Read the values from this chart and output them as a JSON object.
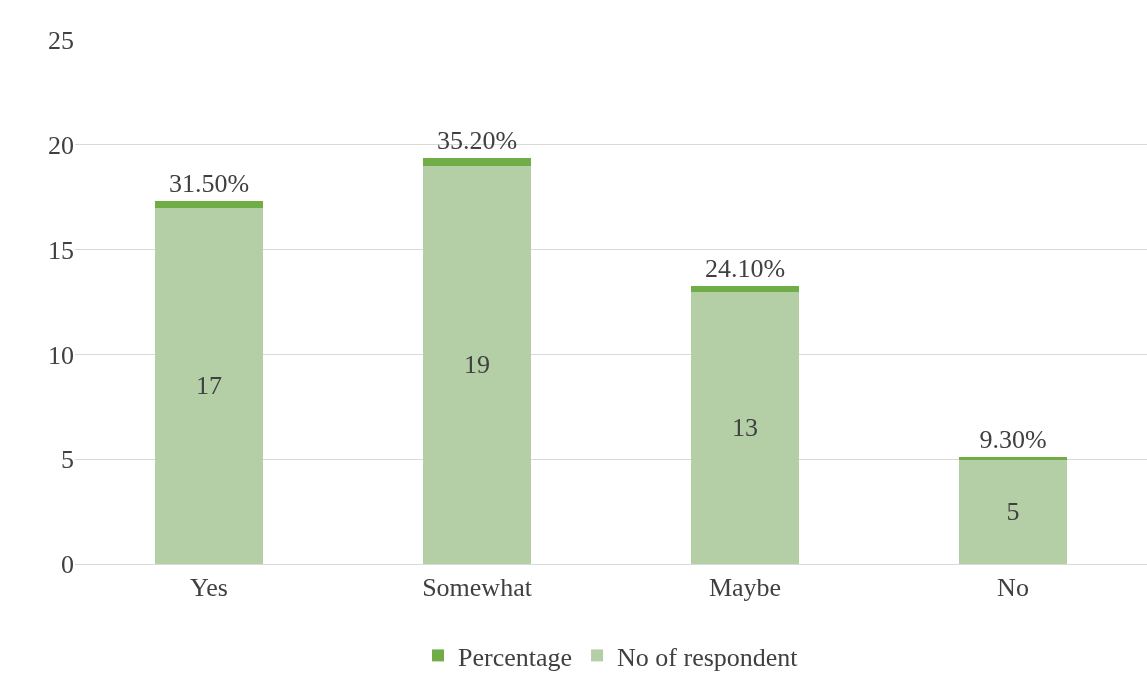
{
  "chart_data": {
    "type": "bar",
    "stacked": true,
    "categories": [
      "Yes",
      "Somewhat",
      "Maybe",
      "No"
    ],
    "series": [
      {
        "name": "No of respondent",
        "color": "#b4cfa5",
        "values": [
          17,
          19,
          13,
          5
        ],
        "value_labels": [
          "17",
          "19",
          "13",
          "5"
        ]
      },
      {
        "name": "Percentage",
        "color": "#70ad47",
        "values": [
          0.315,
          0.352,
          0.241,
          0.093
        ],
        "value_labels": [
          "31.50%",
          "35.20%",
          "24.10%",
          "9.30%"
        ]
      }
    ],
    "ylim": [
      0,
      25
    ],
    "yticks": [
      0,
      5,
      10,
      15,
      20,
      25
    ],
    "grid": "y",
    "legend": "bottom"
  }
}
